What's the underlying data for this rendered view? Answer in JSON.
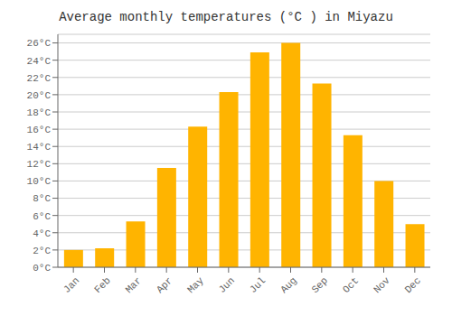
{
  "chart_data": {
    "type": "bar",
    "title": "Average monthly temperatures (°C ) in Miyazu",
    "categories": [
      "Jan",
      "Feb",
      "Mar",
      "Apr",
      "May",
      "Jun",
      "Jul",
      "Aug",
      "Sep",
      "Oct",
      "Nov",
      "Dec"
    ],
    "values": [
      2.0,
      2.2,
      5.3,
      11.5,
      16.3,
      20.3,
      24.9,
      26.0,
      21.3,
      15.3,
      10.0,
      5.0
    ],
    "color": "#FFB400",
    "ylim": [
      0,
      27
    ],
    "yticks": [
      {
        "value": 0,
        "label": "0°C"
      },
      {
        "value": 2,
        "label": "2°C"
      },
      {
        "value": 4,
        "label": "4°C"
      },
      {
        "value": 6,
        "label": "6°C"
      },
      {
        "value": 8,
        "label": "8°C"
      },
      {
        "value": 10,
        "label": "10°C"
      },
      {
        "value": 12,
        "label": "12°C"
      },
      {
        "value": 14,
        "label": "14°C"
      },
      {
        "value": 16,
        "label": "16°C"
      },
      {
        "value": 18,
        "label": "18°C"
      },
      {
        "value": 20,
        "label": "20°C"
      },
      {
        "value": 22,
        "label": "22°C"
      },
      {
        "value": 24,
        "label": "24°C"
      },
      {
        "value": 26,
        "label": "26°C"
      }
    ],
    "grid": true
  }
}
